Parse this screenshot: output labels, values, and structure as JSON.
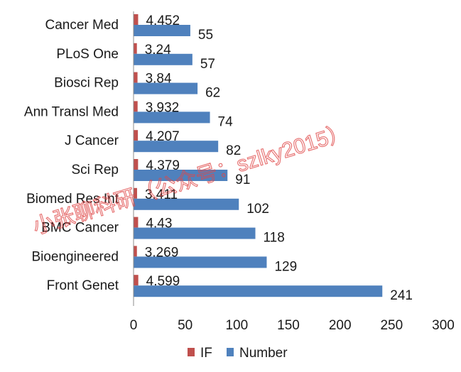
{
  "chart_data": {
    "type": "bar",
    "orientation": "horizontal",
    "categories": [
      "Cancer Med",
      "PLoS One",
      "Biosci Rep",
      "Ann Transl Med",
      "J Cancer",
      "Sci Rep",
      "Biomed Res Int",
      "BMC Cancer",
      "Bioengineered",
      "Front Genet"
    ],
    "series": [
      {
        "name": "IF",
        "color": "#c0504d",
        "values": [
          4.452,
          3.24,
          3.84,
          3.932,
          4.207,
          4.379,
          3.411,
          4.43,
          3.269,
          4.599
        ],
        "labels": [
          "4.452",
          "3.24",
          "3.84",
          "3.932",
          "4.207",
          "4.379",
          "3.411",
          "4.43",
          "3.269",
          "4.599"
        ]
      },
      {
        "name": "Number",
        "color": "#4f81bd",
        "values": [
          55,
          57,
          62,
          74,
          82,
          91,
          102,
          118,
          129,
          241
        ],
        "labels": [
          "55",
          "57",
          "62",
          "74",
          "82",
          "91",
          "102",
          "118",
          "129",
          "241"
        ]
      }
    ],
    "xticks": [
      "0",
      "50",
      "100",
      "150",
      "200",
      "250",
      "300"
    ],
    "xlim": [
      0,
      300
    ],
    "grid": false,
    "legend_position": "bottom",
    "watermark": "小张聊科研（公众号：szlky2015）"
  }
}
